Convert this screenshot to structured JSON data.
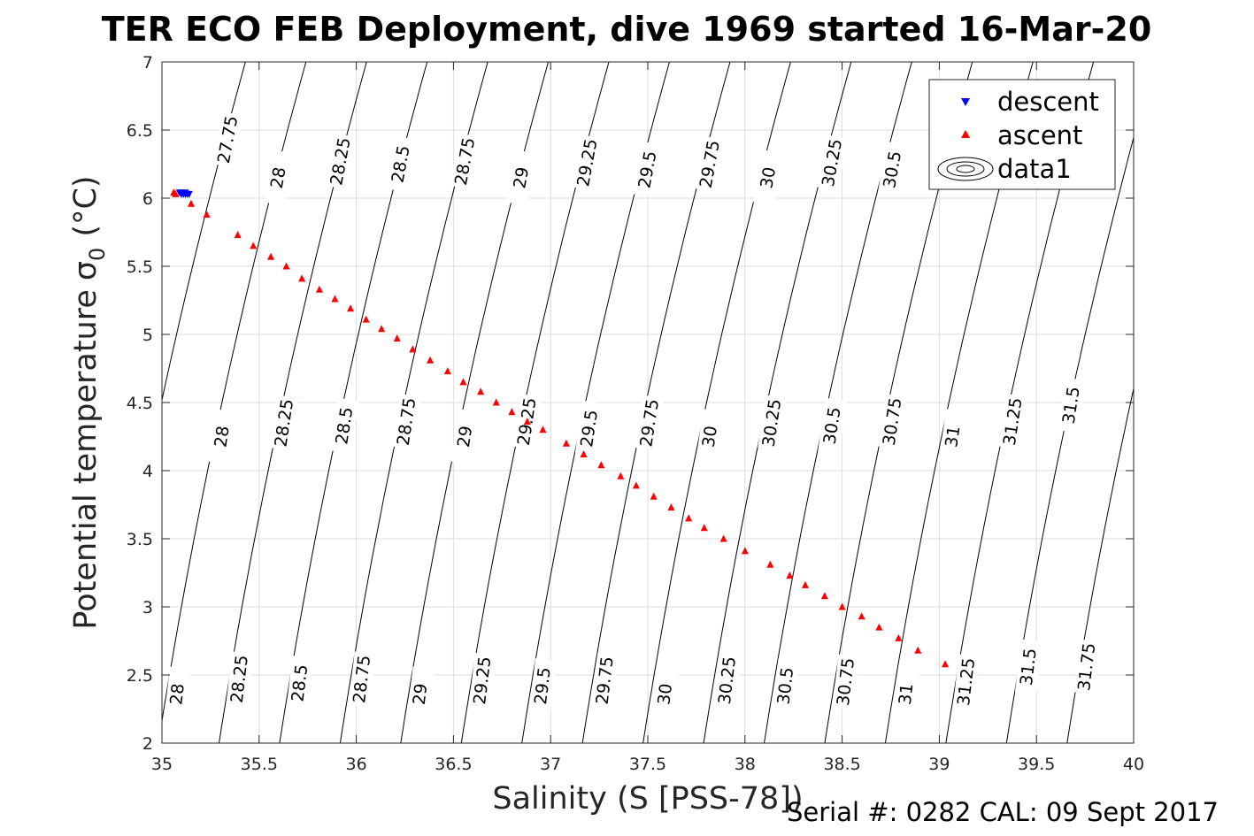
{
  "chart_data": {
    "type": "scatter",
    "title": "TER ECO FEB Deployment, dive 1969 started 16-Mar-20",
    "xlabel": "Salinity (S [PSS-78])",
    "ylabel": "Potential temperature",
    "ylabel_sigma": "σ",
    "ylabel_sub": "0",
    "ylabel_unit": "(°C)",
    "footer": "Serial #: 0282  CAL: 09 Sept 2017",
    "xlim": [
      35,
      40
    ],
    "ylim": [
      2,
      7
    ],
    "grid": true,
    "legend_position": "top-right",
    "x_ticks": [
      35,
      35.5,
      36,
      36.5,
      37,
      37.5,
      38,
      38.5,
      39,
      39.5,
      40
    ],
    "x_tick_labels": [
      "35",
      "35.5",
      "36",
      "36.5",
      "37",
      "37.5",
      "38",
      "38.5",
      "39",
      "39.5",
      "40"
    ],
    "y_ticks": [
      2,
      2.5,
      3,
      3.5,
      4,
      4.5,
      5,
      5.5,
      6,
      6.5,
      7
    ],
    "y_tick_labels": [
      "2",
      "2.5",
      "3",
      "3.5",
      "4",
      "4.5",
      "5",
      "5.5",
      "6",
      "6.5",
      "7"
    ],
    "series": [
      {
        "name": "descent",
        "marker": "triangle-down",
        "color": "#0000ff",
        "x": [
          35.09,
          35.1,
          35.11,
          35.12,
          35.13,
          35.14,
          35.1,
          35.12
        ],
        "y": [
          6.04,
          6.03,
          6.03,
          6.03,
          6.03,
          6.03,
          6.04,
          6.04
        ]
      },
      {
        "name": "ascent",
        "marker": "triangle-up",
        "color": "#ff0000",
        "x": [
          35.06,
          35.07,
          35.15,
          35.23,
          35.39,
          35.47,
          35.56,
          35.64,
          35.72,
          35.81,
          35.89,
          35.97,
          36.05,
          36.13,
          36.21,
          36.29,
          36.38,
          36.47,
          36.55,
          36.64,
          36.72,
          36.8,
          36.88,
          36.96,
          37.08,
          37.17,
          37.26,
          37.36,
          37.44,
          37.53,
          37.62,
          37.71,
          37.79,
          37.89,
          38.0,
          38.13,
          38.23,
          38.31,
          38.41,
          38.5,
          38.6,
          38.69,
          38.79,
          38.89,
          39.03
        ],
        "y": [
          6.04,
          6.03,
          5.96,
          5.88,
          5.73,
          5.65,
          5.57,
          5.5,
          5.41,
          5.33,
          5.26,
          5.19,
          5.11,
          5.04,
          4.97,
          4.89,
          4.81,
          4.73,
          4.65,
          4.58,
          4.5,
          4.43,
          4.36,
          4.3,
          4.2,
          4.12,
          4.04,
          3.96,
          3.89,
          3.81,
          3.73,
          3.65,
          3.58,
          3.5,
          3.41,
          3.31,
          3.23,
          3.16,
          3.08,
          3.0,
          2.93,
          2.85,
          2.77,
          2.68,
          2.58
        ]
      }
    ],
    "contour_legend_label": "data1",
    "contour_levels": [
      27.75,
      28,
      28.25,
      28.5,
      28.75,
      29,
      29.25,
      29.5,
      29.75,
      30,
      30.25,
      30.5,
      30.75,
      31,
      31.25,
      31.5,
      31.75
    ],
    "contour_labels": [
      {
        "level": "27.75",
        "s": 35.34,
        "t": 6.43
      },
      {
        "level": "28",
        "s": 35.6,
        "t": 6.15
      },
      {
        "level": "28.25",
        "s": 35.92,
        "t": 6.27
      },
      {
        "level": "28.5",
        "s": 36.23,
        "t": 6.25
      },
      {
        "level": "28.75",
        "s": 36.56,
        "t": 6.27
      },
      {
        "level": "29",
        "s": 36.85,
        "t": 6.15
      },
      {
        "level": "29.25",
        "s": 37.19,
        "t": 6.26
      },
      {
        "level": "29.5",
        "s": 37.5,
        "t": 6.21
      },
      {
        "level": "29.75",
        "s": 37.82,
        "t": 6.25
      },
      {
        "level": "30",
        "s": 38.12,
        "t": 6.15
      },
      {
        "level": "30.25",
        "s": 38.45,
        "t": 6.26
      },
      {
        "level": "30.5",
        "s": 38.76,
        "t": 6.21
      },
      {
        "level": "28",
        "s": 35.31,
        "t": 4.25
      },
      {
        "level": "28.25",
        "s": 35.63,
        "t": 4.35
      },
      {
        "level": "28.5",
        "s": 35.94,
        "t": 4.33
      },
      {
        "level": "28.75",
        "s": 36.26,
        "t": 4.36
      },
      {
        "level": "29",
        "s": 36.56,
        "t": 4.25
      },
      {
        "level": "29.25",
        "s": 36.88,
        "t": 4.36
      },
      {
        "level": "29.5",
        "s": 37.2,
        "t": 4.31
      },
      {
        "level": "29.75",
        "s": 37.51,
        "t": 4.35
      },
      {
        "level": "30",
        "s": 37.82,
        "t": 4.25
      },
      {
        "level": "30.25",
        "s": 38.14,
        "t": 4.35
      },
      {
        "level": "30.5",
        "s": 38.45,
        "t": 4.33
      },
      {
        "level": "30.75",
        "s": 38.76,
        "t": 4.36
      },
      {
        "level": "31",
        "s": 39.07,
        "t": 4.25
      },
      {
        "level": "31.25",
        "s": 39.38,
        "t": 4.36
      },
      {
        "level": "31.5",
        "s": 39.68,
        "t": 4.48
      },
      {
        "level": "28",
        "s": 35.08,
        "t": 2.36
      },
      {
        "level": "28.25",
        "s": 35.4,
        "t": 2.47
      },
      {
        "level": "28.5",
        "s": 35.71,
        "t": 2.44
      },
      {
        "level": "28.75",
        "s": 36.03,
        "t": 2.47
      },
      {
        "level": "29",
        "s": 36.33,
        "t": 2.36
      },
      {
        "level": "29.25",
        "s": 36.65,
        "t": 2.46
      },
      {
        "level": "29.5",
        "s": 36.96,
        "t": 2.42
      },
      {
        "level": "29.75",
        "s": 37.28,
        "t": 2.46
      },
      {
        "level": "30",
        "s": 37.59,
        "t": 2.36
      },
      {
        "level": "30.25",
        "s": 37.91,
        "t": 2.46
      },
      {
        "level": "30.5",
        "s": 38.21,
        "t": 2.42
      },
      {
        "level": "30.75",
        "s": 38.52,
        "t": 2.45
      },
      {
        "level": "31",
        "s": 38.83,
        "t": 2.36
      },
      {
        "level": "31.25",
        "s": 39.14,
        "t": 2.45
      },
      {
        "level": "31.5",
        "s": 39.46,
        "t": 2.56
      },
      {
        "level": "31.75",
        "s": 39.76,
        "t": 2.56
      }
    ]
  }
}
